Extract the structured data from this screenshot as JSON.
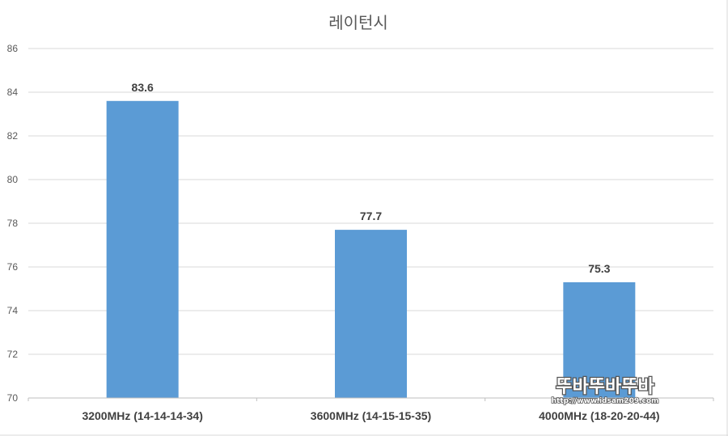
{
  "chart_data": {
    "type": "bar",
    "title": "레이턴시",
    "categories": [
      "3200MHz (14-14-14-34)",
      "3600MHz (14-15-15-35)",
      "4000MHz (18-20-20-44)"
    ],
    "values": [
      83.6,
      77.7,
      75.3
    ],
    "data_labels": [
      "83.6",
      "77.7",
      "75.3"
    ],
    "ylim": [
      70,
      86
    ],
    "yticks": [
      70,
      72,
      74,
      76,
      78,
      80,
      82,
      84,
      86
    ],
    "grid": true,
    "legend": "none",
    "bar_color": "#5b9bd5"
  },
  "watermark": {
    "top_text": "뚜바뚜바뚜바",
    "bottom_text": "http://www.idsam209.com"
  }
}
